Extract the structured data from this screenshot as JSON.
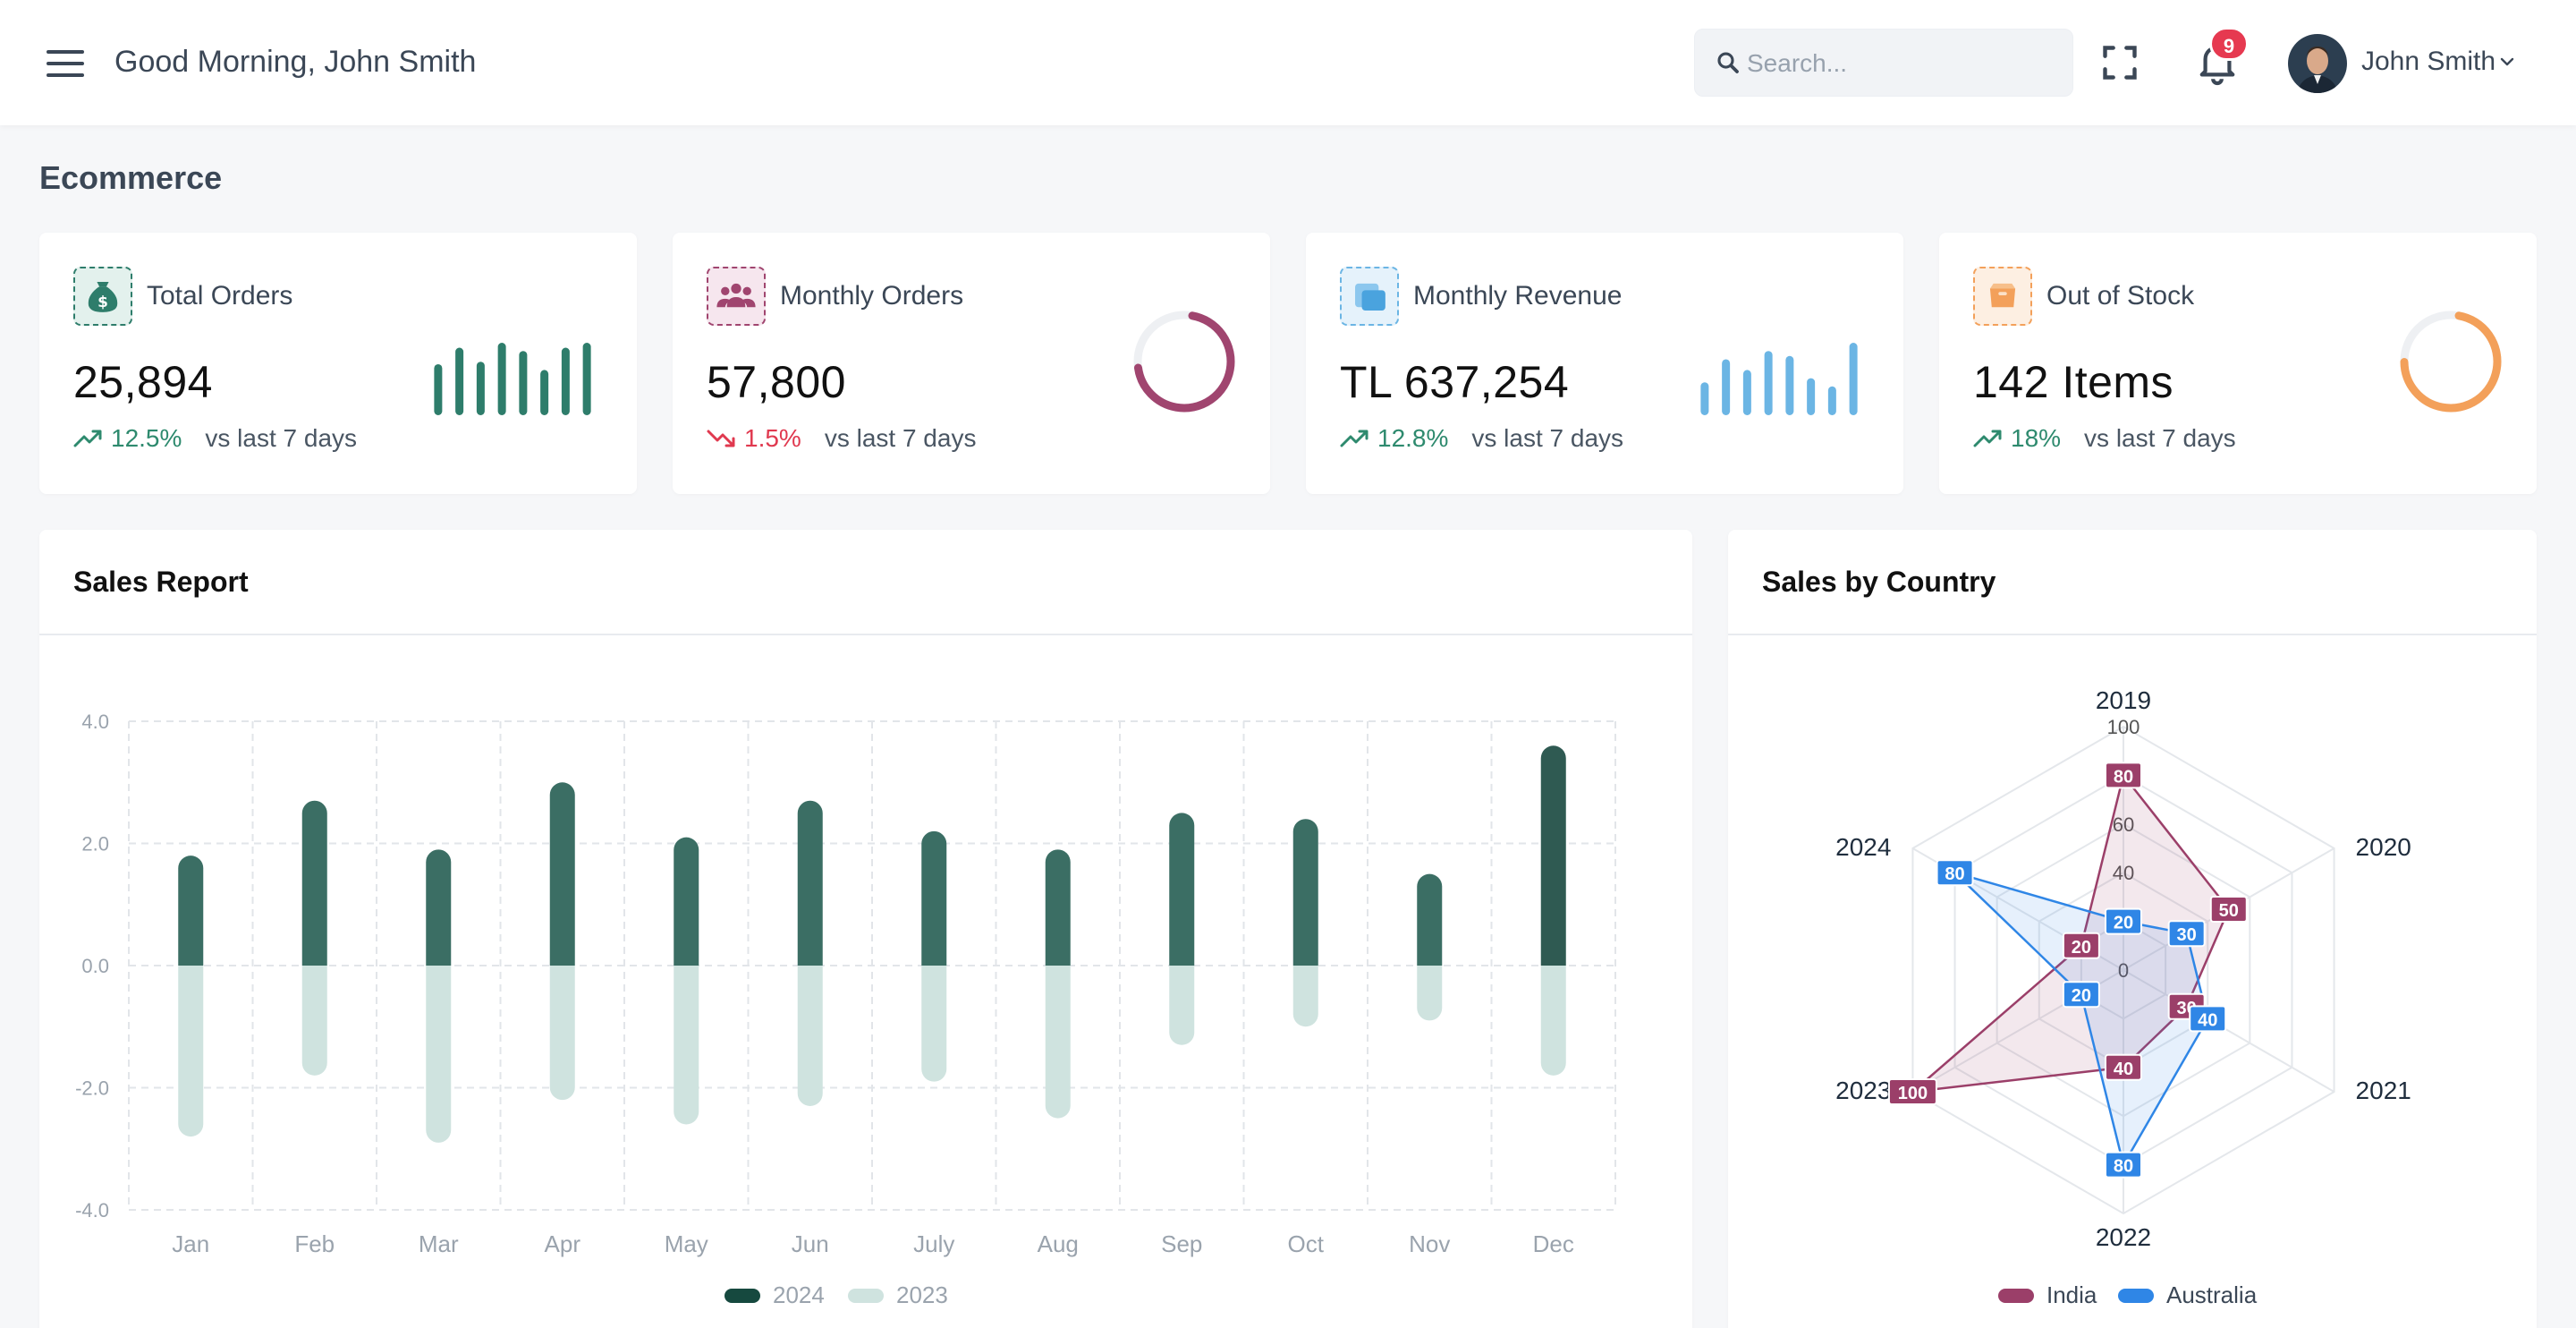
{
  "header": {
    "greeting": "Good Morning, John Smith",
    "search_placeholder": "Search...",
    "notification_count": "9",
    "user_name": "John Smith"
  },
  "page": {
    "section_title": "Ecommerce"
  },
  "stats": [
    {
      "label": "Total Orders",
      "value": "25,894",
      "change": "12.5%",
      "direction": "up",
      "suffix": "vs last 7 days",
      "color": "#2e7d6b",
      "icon": "money-bag-icon",
      "mini_chart": "bars",
      "mini_values": [
        62,
        82,
        65,
        88,
        78,
        55,
        82,
        88
      ]
    },
    {
      "label": "Monthly Orders",
      "value": "57,800",
      "change": "1.5%",
      "direction": "down",
      "suffix": "vs last 7 days",
      "color": "#a0456f",
      "icon": "users-icon",
      "mini_chart": "donut",
      "donut_fraction": 0.7
    },
    {
      "label": "Monthly Revenue",
      "value": "TL 637,254",
      "change": "12.8%",
      "direction": "up",
      "suffix": "vs last 7 days",
      "color": "#6bb5e4",
      "icon": "wallet-icon",
      "mini_chart": "bars",
      "mini_values": [
        40,
        68,
        55,
        78,
        72,
        45,
        35,
        88
      ]
    },
    {
      "label": "Out of Stock",
      "value": "142 Items",
      "change": "18%",
      "direction": "up",
      "suffix": "vs last 7 days",
      "color": "#f3a05a",
      "icon": "box-icon",
      "mini_chart": "donut",
      "donut_fraction": 0.72
    }
  ],
  "colors": {
    "up": "#2e8a6e",
    "down": "#e0394f",
    "bar_2024": "#3b6e64",
    "bar_2024_last": "#2f5a52",
    "bar_2023": "#cfe3df",
    "india": "#9b3f69",
    "australia": "#2f86e6"
  },
  "sales_report": {
    "title": "Sales Report",
    "chart_data": {
      "type": "bar",
      "categories": [
        "Jan",
        "Feb",
        "Mar",
        "Apr",
        "May",
        "Jun",
        "July",
        "Aug",
        "Sep",
        "Oct",
        "Nov",
        "Dec"
      ],
      "series": [
        {
          "name": "2024",
          "values": [
            1.8,
            2.7,
            1.9,
            3.0,
            2.1,
            2.7,
            2.2,
            1.9,
            2.5,
            2.4,
            1.5,
            3.6
          ]
        },
        {
          "name": "2023",
          "values": [
            -2.8,
            -1.8,
            -2.9,
            -2.2,
            -2.6,
            -2.3,
            -1.9,
            -2.5,
            -1.3,
            -1.0,
            -0.9,
            -1.8
          ]
        }
      ],
      "ylim": [
        -4,
        4
      ],
      "yticks": [
        "4.0",
        "2.0",
        "0.0",
        "-2.0",
        "-4.0"
      ],
      "grid": true,
      "legend_position": "bottom-center"
    }
  },
  "sales_by_country": {
    "title": "Sales by Country",
    "chart_data": {
      "type": "radar",
      "axes": [
        "2019",
        "2020",
        "2021",
        "2022",
        "2023",
        "2024"
      ],
      "series": [
        {
          "name": "India",
          "values": [
            80,
            50,
            30,
            40,
            100,
            20
          ]
        },
        {
          "name": "Australia",
          "values": [
            20,
            30,
            40,
            80,
            20,
            80
          ]
        }
      ],
      "rlim": [
        0,
        100
      ],
      "rticks": [
        "0",
        "20",
        "40",
        "60",
        "100"
      ],
      "legend_position": "bottom-center"
    }
  }
}
